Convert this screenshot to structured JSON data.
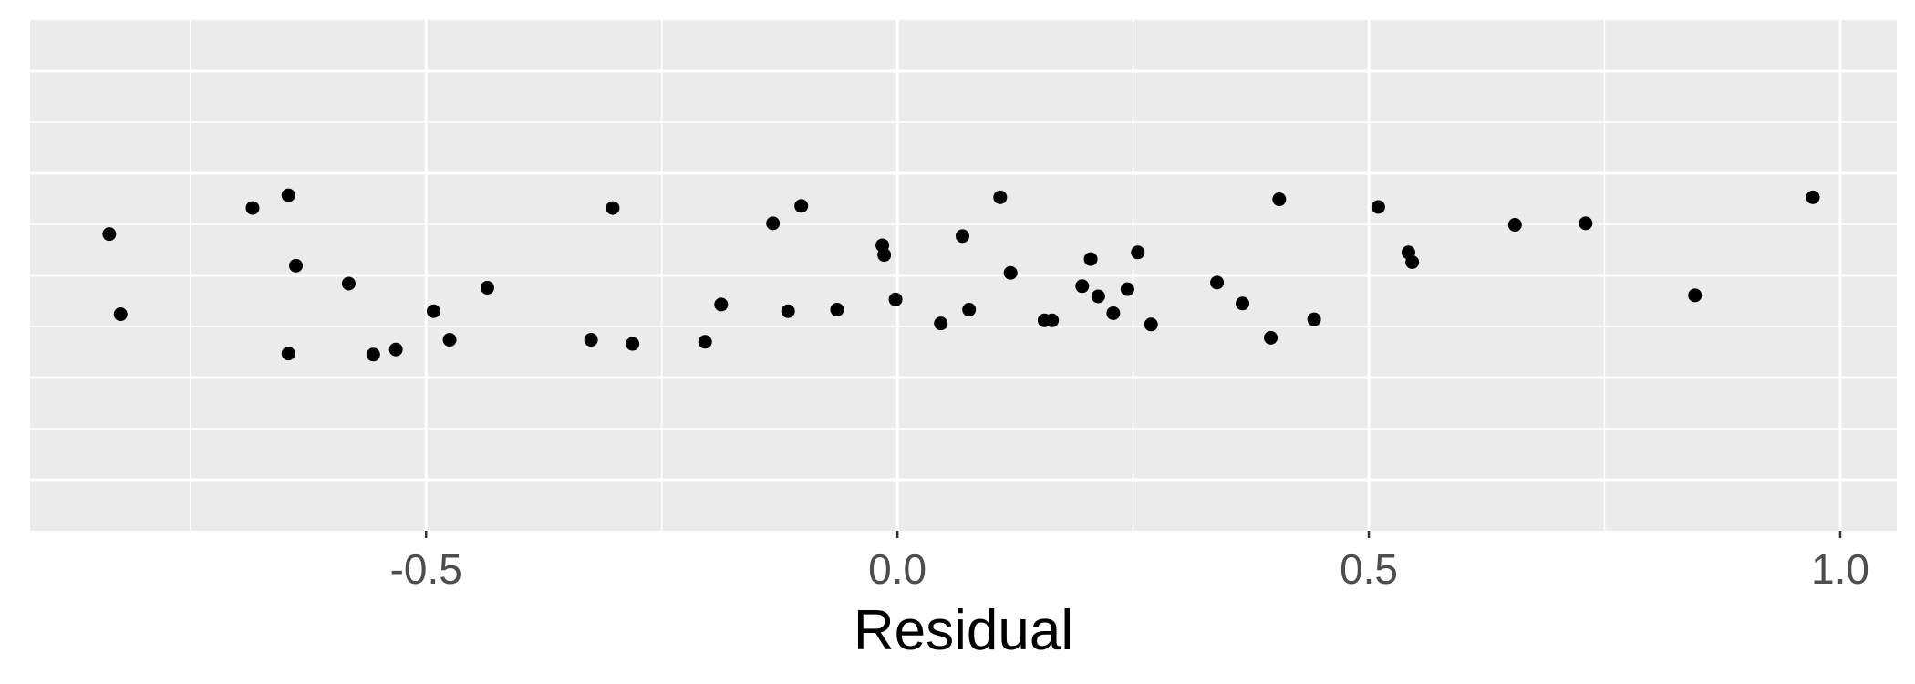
{
  "chart_data": {
    "type": "scatter",
    "title": "",
    "xlabel": "Residual",
    "ylabel": "",
    "xlim": [
      -0.92,
      1.06
    ],
    "ylim": [
      -0.5,
      0.5
    ],
    "x_ticks": [
      -0.5,
      0.0,
      0.5,
      1.0
    ],
    "x_tick_labels": [
      "-0.5",
      "0.0",
      "0.5",
      "1.0"
    ],
    "x_minor_ticks": [
      -0.75,
      -0.25,
      0.25,
      0.75
    ],
    "y_major_ticks": [
      -0.4,
      -0.2,
      0.0,
      0.2,
      0.4
    ],
    "y_minor_ticks": [
      -0.3,
      -0.1,
      0.1,
      0.3
    ],
    "grid": true,
    "legend": "none",
    "colors": {
      "panel_background": "#EBEBEB",
      "grid": "#FFFFFF",
      "point": "#000000",
      "tick_label": "#4D4D4D",
      "axis_title": "#000000"
    },
    "points": [
      {
        "x": -0.836,
        "y": 0.081
      },
      {
        "x": -0.824,
        "y": -0.076
      },
      {
        "x": -0.684,
        "y": 0.132
      },
      {
        "x": -0.646,
        "y": 0.157
      },
      {
        "x": -0.646,
        "y": -0.153
      },
      {
        "x": -0.638,
        "y": 0.019
      },
      {
        "x": -0.582,
        "y": -0.016
      },
      {
        "x": -0.556,
        "y": -0.155
      },
      {
        "x": -0.532,
        "y": -0.145
      },
      {
        "x": -0.492,
        "y": -0.07
      },
      {
        "x": -0.475,
        "y": -0.126
      },
      {
        "x": -0.435,
        "y": -0.024
      },
      {
        "x": -0.325,
        "y": -0.126
      },
      {
        "x": -0.302,
        "y": 0.132
      },
      {
        "x": -0.281,
        "y": -0.134
      },
      {
        "x": -0.204,
        "y": -0.13
      },
      {
        "x": -0.187,
        "y": -0.057
      },
      {
        "x": -0.132,
        "y": 0.102
      },
      {
        "x": -0.116,
        "y": -0.07
      },
      {
        "x": -0.102,
        "y": 0.136
      },
      {
        "x": -0.064,
        "y": -0.067
      },
      {
        "x": -0.016,
        "y": 0.059
      },
      {
        "x": -0.014,
        "y": 0.04
      },
      {
        "x": -0.002,
        "y": -0.047
      },
      {
        "x": 0.046,
        "y": -0.094
      },
      {
        "x": 0.069,
        "y": 0.077
      },
      {
        "x": 0.076,
        "y": -0.067
      },
      {
        "x": 0.109,
        "y": 0.153
      },
      {
        "x": 0.12,
        "y": 0.005
      },
      {
        "x": 0.156,
        "y": -0.088
      },
      {
        "x": 0.164,
        "y": -0.088
      },
      {
        "x": 0.196,
        "y": -0.021
      },
      {
        "x": 0.205,
        "y": 0.032
      },
      {
        "x": 0.213,
        "y": -0.041
      },
      {
        "x": 0.229,
        "y": -0.074
      },
      {
        "x": 0.244,
        "y": -0.027
      },
      {
        "x": 0.255,
        "y": 0.045
      },
      {
        "x": 0.269,
        "y": -0.096
      },
      {
        "x": 0.339,
        "y": -0.014
      },
      {
        "x": 0.366,
        "y": -0.055
      },
      {
        "x": 0.396,
        "y": -0.122
      },
      {
        "x": 0.405,
        "y": 0.149
      },
      {
        "x": 0.442,
        "y": -0.086
      },
      {
        "x": 0.51,
        "y": 0.134
      },
      {
        "x": 0.542,
        "y": 0.045
      },
      {
        "x": 0.546,
        "y": 0.026
      },
      {
        "x": 0.655,
        "y": 0.099
      },
      {
        "x": 0.73,
        "y": 0.102
      },
      {
        "x": 0.846,
        "y": -0.039
      },
      {
        "x": 0.971,
        "y": 0.153
      }
    ]
  }
}
